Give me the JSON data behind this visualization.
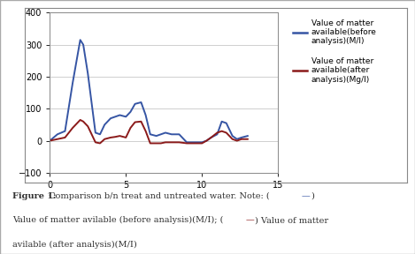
{
  "blue_x": [
    0,
    0.5,
    1,
    1.5,
    2,
    2.2,
    2.5,
    3,
    3.3,
    3.6,
    4,
    4.3,
    4.6,
    5,
    5.3,
    5.6,
    6,
    6.3,
    6.6,
    7,
    7.3,
    7.6,
    8,
    8.5,
    9,
    9.5,
    10,
    10.3,
    10.6,
    11,
    11.3,
    11.6,
    12,
    12.3,
    12.6,
    13
  ],
  "blue_y": [
    0,
    20,
    30,
    180,
    315,
    300,
    210,
    25,
    20,
    50,
    70,
    75,
    80,
    75,
    90,
    115,
    120,
    80,
    20,
    15,
    20,
    25,
    20,
    20,
    -5,
    -5,
    -5,
    0,
    10,
    20,
    60,
    55,
    15,
    5,
    10,
    15
  ],
  "red_x": [
    0,
    0.5,
    1,
    1.5,
    2,
    2.2,
    2.5,
    3,
    3.3,
    3.6,
    4,
    4.3,
    4.6,
    5,
    5.3,
    5.6,
    6,
    6.3,
    6.6,
    7,
    7.3,
    7.6,
    8,
    8.5,
    9,
    9.5,
    10,
    10.3,
    10.6,
    11,
    11.3,
    11.6,
    12,
    12.3,
    12.6,
    13
  ],
  "red_y": [
    0,
    5,
    10,
    40,
    65,
    60,
    45,
    -5,
    -8,
    5,
    10,
    12,
    15,
    10,
    40,
    58,
    60,
    30,
    -8,
    -8,
    -8,
    -5,
    -5,
    -5,
    -8,
    -8,
    -8,
    0,
    10,
    25,
    30,
    25,
    5,
    0,
    5,
    5
  ],
  "blue_color": "#3655a4",
  "red_color": "#8b1a1a",
  "xlim": [
    0,
    15
  ],
  "ylim": [
    -100,
    400
  ],
  "xticks": [
    0,
    5,
    10,
    15
  ],
  "yticks": [
    -100,
    0,
    100,
    200,
    300,
    400
  ],
  "legend_blue": "Value of matter\navailable(before\nanalysis)(M/l)",
  "legend_red": "Value of matter\navailable(after\nanalysis)(Mg/l)",
  "bg_color": "#ffffff",
  "fig_width": 4.69,
  "fig_height": 2.88,
  "dpi": 100,
  "outer_border_color": "#aaaaaa",
  "inner_border_color": "#888888",
  "grid_color": "#c8c8c8",
  "caption_fontsize": 7.0,
  "caption_color": "#333333"
}
